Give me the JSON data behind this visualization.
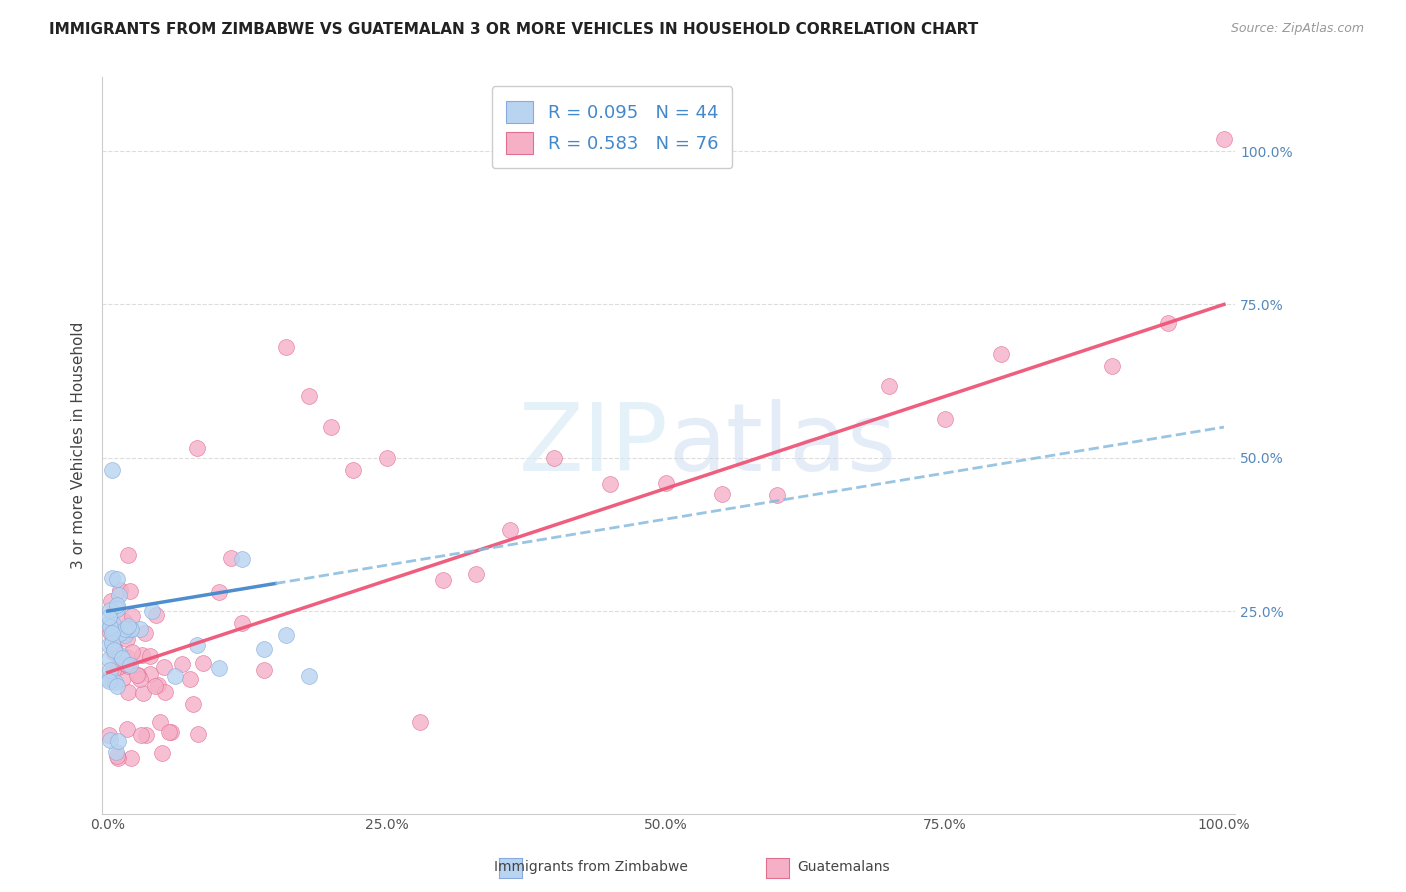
{
  "title": "IMMIGRANTS FROM ZIMBABWE VS GUATEMALAN 3 OR MORE VEHICLES IN HOUSEHOLD CORRELATION CHART",
  "source": "Source: ZipAtlas.com",
  "ylabel": "3 or more Vehicles in Household",
  "xticklabels": [
    "0.0%",
    "25.0%",
    "50.0%",
    "75.0%",
    "100.0%"
  ],
  "yticklabels_right": [
    "25.0%",
    "50.0%",
    "75.0%",
    "100.0%"
  ],
  "xlim": [
    0.0,
    1.0
  ],
  "ylim": [
    -0.05,
    1.1
  ],
  "legend_label_zim": "R = 0.095   N = 44",
  "legend_label_gua": "R = 0.583   N = 76",
  "watermark": "ZIPatlas",
  "dot_color_zimbabwe": "#b8d4f0",
  "dot_color_guatemalan": "#f5b0c8",
  "dot_edgecolor_zimbabwe": "#88aadd",
  "dot_edgecolor_guatemalan": "#e07090",
  "trendline_zimbabwe_solid_color": "#4488cc",
  "trendline_zimbabwe_dashed_color": "#88bbdd",
  "trendline_guatemalan_color": "#ee5577",
  "background_color": "#ffffff",
  "grid_color": "#dddddd",
  "right_axis_color": "#5588bb",
  "title_fontsize": 11,
  "axis_label_fontsize": 11,
  "tick_fontsize": 10,
  "bottom_label_zim": "Immigrants from Zimbabwe",
  "bottom_label_gua": "Guatemalans"
}
